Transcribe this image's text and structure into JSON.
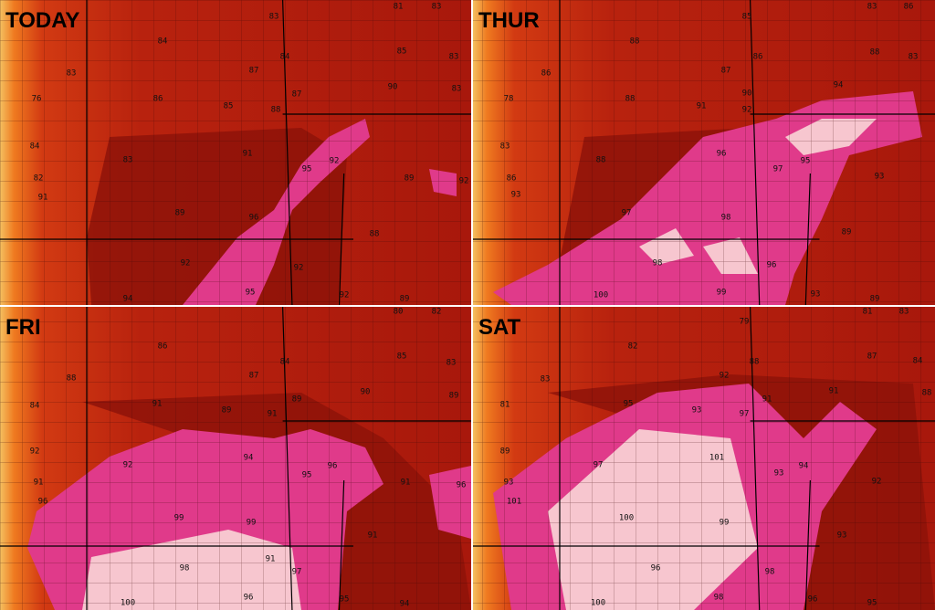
{
  "panels": [
    {
      "label": "TODAY",
      "temps": [
        83,
        81,
        83,
        84,
        85,
        83,
        83,
        87,
        84,
        90,
        83,
        76,
        86,
        85,
        88,
        87,
        84,
        83,
        91,
        95,
        92,
        89,
        92,
        82,
        91,
        89,
        96,
        88,
        92,
        92,
        95,
        92,
        94,
        89
      ]
    },
    {
      "label": "THUR",
      "temps": [
        85,
        83,
        86,
        88,
        86,
        88,
        83,
        86,
        87,
        94,
        78,
        88,
        91,
        90,
        92,
        83,
        88,
        96,
        97,
        95,
        93,
        86,
        93,
        97,
        98,
        89,
        98,
        96,
        99,
        100,
        93,
        89
      ]
    },
    {
      "label": "FRI",
      "temps": [
        80,
        82,
        86,
        85,
        83,
        88,
        87,
        84,
        90,
        89,
        84,
        91,
        89,
        91,
        89,
        92,
        92,
        94,
        95,
        96,
        91,
        96,
        91,
        96,
        99,
        99,
        91,
        98,
        97,
        91,
        95,
        94,
        100,
        96
      ]
    },
    {
      "label": "SAT",
      "temps": [
        79,
        81,
        83,
        82,
        87,
        84,
        83,
        92,
        88,
        91,
        88,
        81,
        95,
        93,
        97,
        91,
        89,
        97,
        101,
        93,
        94,
        92,
        93,
        101,
        100,
        99,
        93,
        96,
        98,
        98,
        100,
        96,
        95
      ]
    }
  ]
}
